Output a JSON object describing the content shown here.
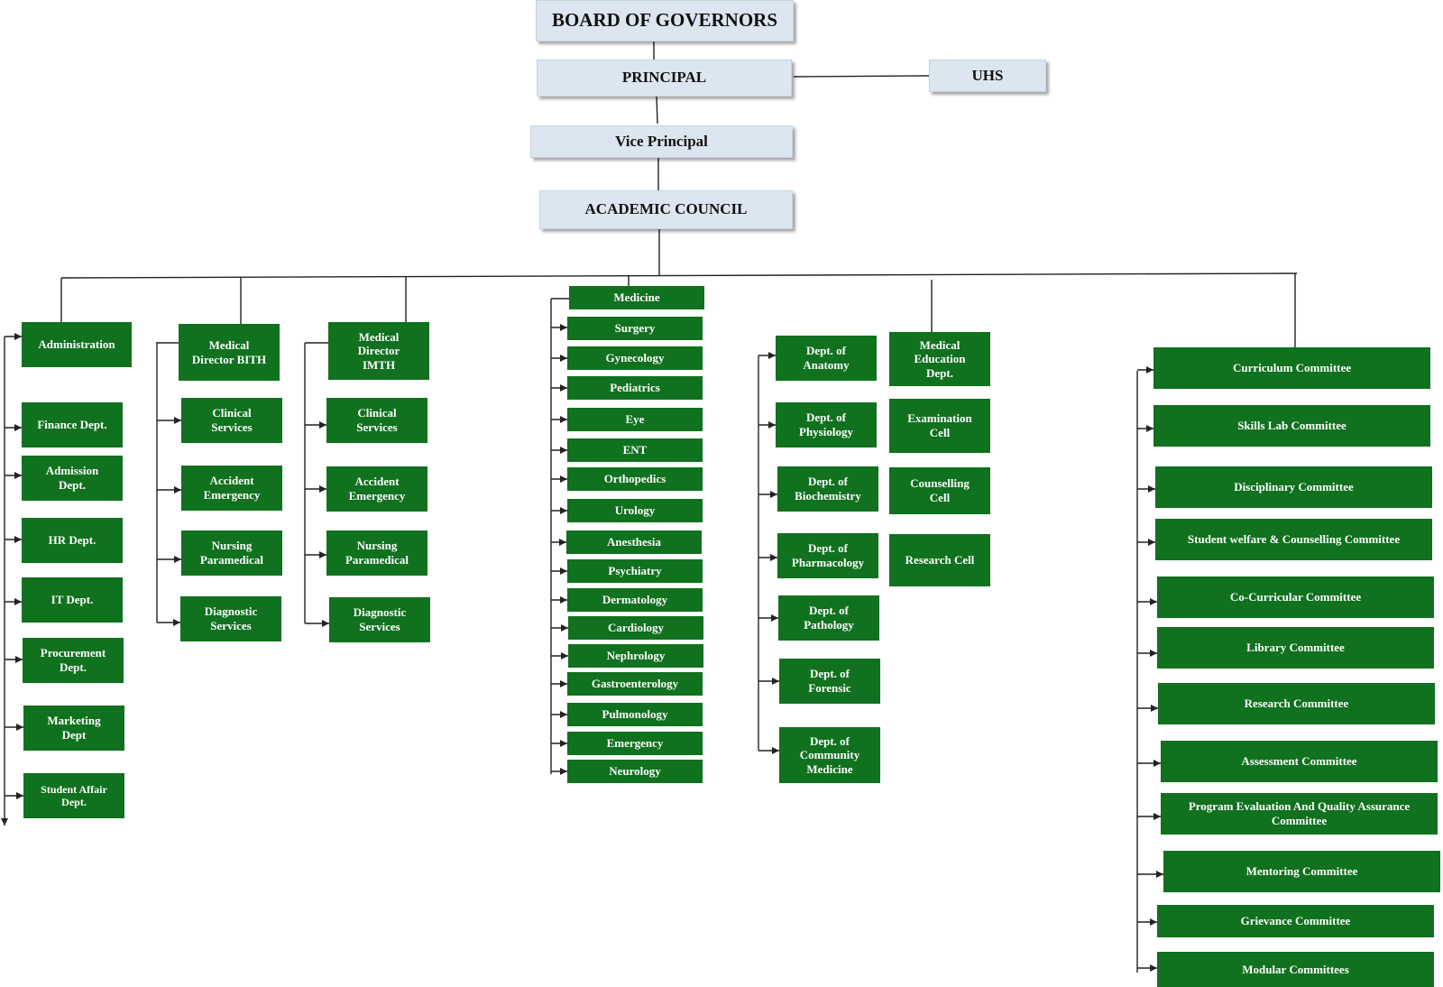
{
  "top_nodes": {
    "board": "BOARD OF GOVERNORS",
    "principal": "PRINCIPAL",
    "uhs": "UHS",
    "vice_principal": "Vice Principal",
    "academic_council": "ACADEMIC COUNCIL"
  },
  "administration": {
    "head": "Administration",
    "items": [
      "Finance Dept.",
      "Admission\nDept.",
      "HR Dept.",
      "IT Dept.",
      "Procurement\nDept.",
      "Marketing\nDept",
      "Student Affair\nDept."
    ]
  },
  "bith": {
    "head": "Medical\nDirector BITH",
    "items": [
      "Clinical\nServices",
      "Accident\nEmergency",
      "Nursing\nParamedical",
      "Diagnostic\nServices"
    ]
  },
  "imth": {
    "head": "Medical\nDirector\nIMTH",
    "items": [
      "Clinical\nServices",
      "Accident\nEmergency",
      "Nursing\nParamedical",
      "Diagnostic\nServices"
    ]
  },
  "clinical_departments": [
    "Medicine",
    "Surgery",
    "Gynecology",
    "Pediatrics",
    "Eye",
    "ENT",
    "Orthopedics",
    "Urology",
    "Anesthesia",
    "Psychiatry",
    "Dermatology",
    "Cardiology",
    "Nephrology",
    "Gastroenterology",
    "Pulmonology",
    "Emergency",
    "Neurology"
  ],
  "basic_sciences": [
    "Dept. of\nAnatomy",
    "Dept. of\nPhysiology",
    "Dept. of\nBiochemistry",
    "Dept. of\nPharmacology",
    "Dept. of\nPathology",
    "Dept. of\nForensic",
    "Dept. of\nCommunity\nMedicine"
  ],
  "medical_education": {
    "head": "Medical\nEducation\nDept.",
    "items": [
      "Examination\nCell",
      "Counselling\nCell",
      "Research Cell"
    ]
  },
  "committees": [
    "Curriculum Committee",
    "Skills Lab Committee",
    "Disciplinary Committee",
    "Student welfare & Counselling Committee",
    "Co-Curricular Committee",
    "Library Committee",
    "Research Committee",
    "Assessment Committee",
    "Program Evaluation And Quality Assurance\nCommittee",
    "Mentoring  Committee",
    "Grievance Committee",
    "Modular Committees"
  ],
  "colors": {
    "green": "#10711e",
    "light_blue": "#dce6f1",
    "line": "#222222"
  }
}
